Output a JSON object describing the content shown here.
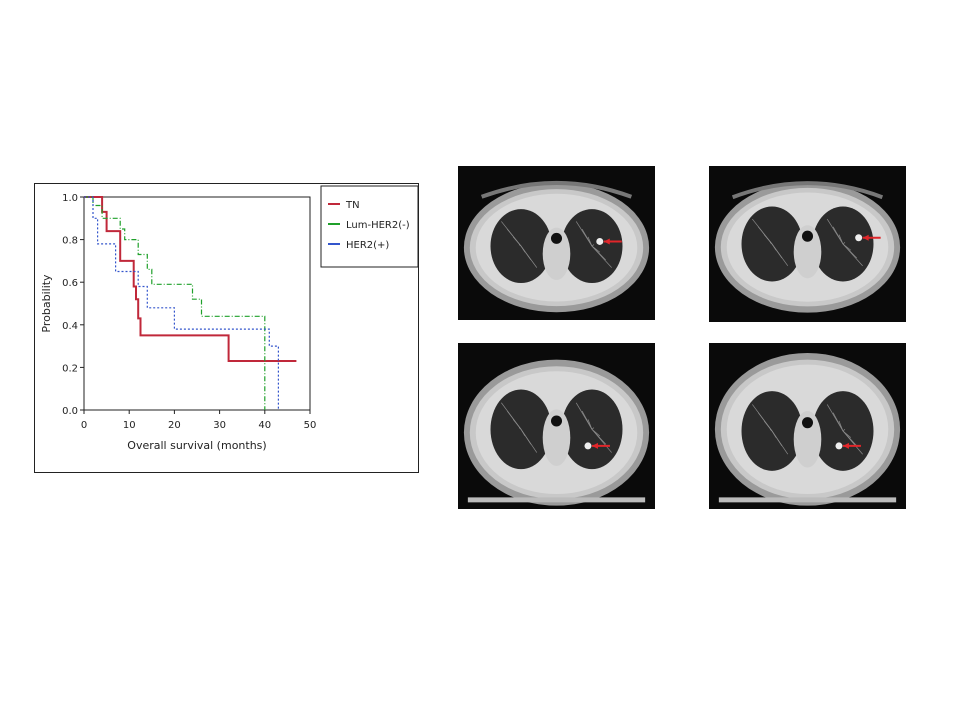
{
  "chart_data": {
    "type": "line",
    "subtype": "kaplan-meier step",
    "title": "",
    "xlabel": "Overall survival (months)",
    "ylabel": "Probability",
    "xlim": [
      0,
      50
    ],
    "ylim": [
      0,
      1.0
    ],
    "xticks": [
      0,
      10,
      20,
      30,
      40,
      50
    ],
    "yticks": [
      "0.0",
      "0.2",
      "0.4",
      "0.6",
      "0.8",
      "1.0"
    ],
    "grid": false,
    "legend_position": "right",
    "series": [
      {
        "name": "TN",
        "color": "#c0283a",
        "dash": "solid",
        "points": [
          [
            0,
            1.0
          ],
          [
            4,
            1.0
          ],
          [
            4,
            0.93
          ],
          [
            5,
            0.93
          ],
          [
            5,
            0.84
          ],
          [
            8,
            0.84
          ],
          [
            8,
            0.7
          ],
          [
            11,
            0.7
          ],
          [
            11,
            0.58
          ],
          [
            11.5,
            0.58
          ],
          [
            11.5,
            0.52
          ],
          [
            12,
            0.52
          ],
          [
            12,
            0.43
          ],
          [
            12.5,
            0.43
          ],
          [
            12.5,
            0.35
          ],
          [
            32,
            0.35
          ],
          [
            32,
            0.23
          ],
          [
            47,
            0.23
          ]
        ]
      },
      {
        "name": "Lum-HER2(-)",
        "color": "#1fa02a",
        "dash": "dashdot",
        "points": [
          [
            0,
            1.0
          ],
          [
            2,
            1.0
          ],
          [
            2,
            0.96
          ],
          [
            4,
            0.96
          ],
          [
            4,
            0.9
          ],
          [
            8,
            0.9
          ],
          [
            8,
            0.85
          ],
          [
            9,
            0.85
          ],
          [
            9,
            0.8
          ],
          [
            12,
            0.8
          ],
          [
            12,
            0.73
          ],
          [
            14,
            0.73
          ],
          [
            14,
            0.66
          ],
          [
            15,
            0.66
          ],
          [
            15,
            0.59
          ],
          [
            24,
            0.59
          ],
          [
            24,
            0.52
          ],
          [
            26,
            0.52
          ],
          [
            26,
            0.44
          ],
          [
            40,
            0.44
          ],
          [
            40,
            0.0
          ]
        ]
      },
      {
        "name": "HER2(+)",
        "color": "#3355cc",
        "dash": "dotted",
        "points": [
          [
            0,
            1.0
          ],
          [
            2,
            1.0
          ],
          [
            2,
            0.9
          ],
          [
            3,
            0.9
          ],
          [
            3,
            0.78
          ],
          [
            7,
            0.78
          ],
          [
            7,
            0.65
          ],
          [
            12,
            0.65
          ],
          [
            12,
            0.58
          ],
          [
            14,
            0.58
          ],
          [
            14,
            0.48
          ],
          [
            20,
            0.48
          ],
          [
            20,
            0.38
          ],
          [
            41,
            0.38
          ],
          [
            41,
            0.3
          ],
          [
            43,
            0.3
          ],
          [
            43,
            0.0
          ]
        ]
      }
    ]
  },
  "scans": [
    {
      "name": "ct-scan-top-left",
      "arrow_color": "#e0262a"
    },
    {
      "name": "ct-scan-top-right",
      "arrow_color": "#e0262a"
    },
    {
      "name": "ct-scan-bottom-left",
      "arrow_color": "#e0262a"
    },
    {
      "name": "ct-scan-bottom-right",
      "arrow_color": "#e0262a"
    }
  ]
}
